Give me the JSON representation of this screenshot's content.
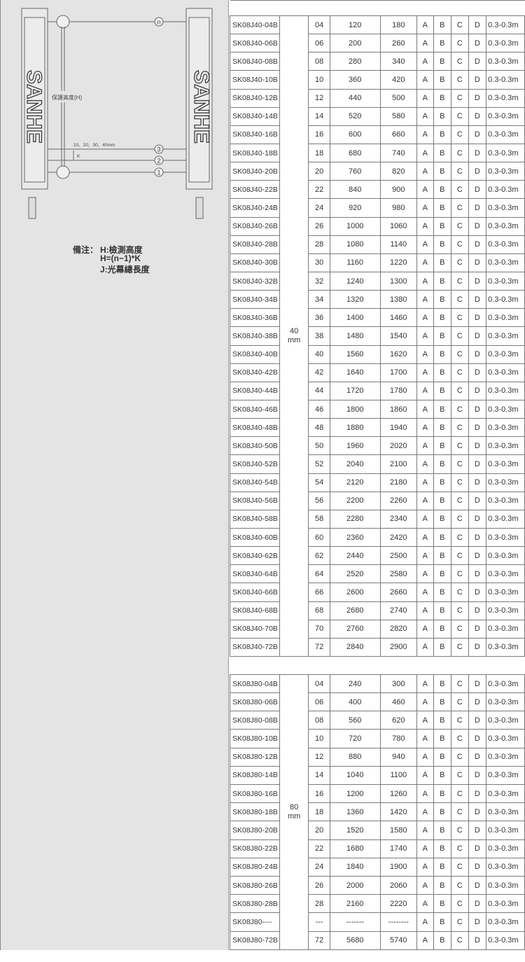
{
  "diagram": {
    "brand": "SANHE",
    "height_label": "保護高度(H)",
    "pitch_label": "10、20、30、40mm",
    "k_label": "K",
    "beam_labels": [
      "n",
      "3",
      "2",
      "1"
    ]
  },
  "notes": {
    "prefix": "備注：",
    "lines": [
      "H:檢測高度",
      "H=(n−1)*K",
      "J:光幕總長度"
    ]
  },
  "colors": {
    "panel": "#e4e4e4",
    "border": "#7a7a7a"
  },
  "sections": [
    {
      "pitch": "40\nmm",
      "rows": [
        [
          "SK08J40-04B",
          "04",
          "120",
          "180",
          "A",
          "B",
          "C",
          "D",
          "0.3-0.3m"
        ],
        [
          "SK08J40-06B",
          "06",
          "200",
          "260",
          "A",
          "B",
          "C",
          "D",
          "0.3-0.3m"
        ],
        [
          "SK08J40-08B",
          "08",
          "280",
          "340",
          "A",
          "B",
          "C",
          "D",
          "0.3-0.3m"
        ],
        [
          "SK08J40-10B",
          "10",
          "360",
          "420",
          "A",
          "B",
          "C",
          "D",
          "0.3-0.3m"
        ],
        [
          "SK08J40-12B",
          "12",
          "440",
          "500",
          "A",
          "B",
          "C",
          "D",
          "0.3-0.3m"
        ],
        [
          "SK08J40-14B",
          "14",
          "520",
          "580",
          "A",
          "B",
          "C",
          "D",
          "0.3-0.3m"
        ],
        [
          "SK08J40-16B",
          "16",
          "600",
          "660",
          "A",
          "B",
          "C",
          "D",
          "0.3-0.3m"
        ],
        [
          "SK08J40-18B",
          "18",
          "680",
          "740",
          "A",
          "B",
          "C",
          "D",
          "0.3-0.3m"
        ],
        [
          "SK08J40-20B",
          "20",
          "760",
          "820",
          "A",
          "B",
          "C",
          "D",
          "0.3-0.3m"
        ],
        [
          "SK08J40-22B",
          "22",
          "840",
          "900",
          "A",
          "B",
          "C",
          "D",
          "0.3-0.3m"
        ],
        [
          "SK08J40-24B",
          "24",
          "920",
          "980",
          "A",
          "B",
          "C",
          "D",
          "0.3-0.3m"
        ],
        [
          "SK08J40-26B",
          "26",
          "1000",
          "1060",
          "A",
          "B",
          "C",
          "D",
          "0.3-0.3m"
        ],
        [
          "SK08J40-28B",
          "28",
          "1080",
          "1140",
          "A",
          "B",
          "C",
          "D",
          "0.3-0.3m"
        ],
        [
          "SK08J40-30B",
          "30",
          "1160",
          "1220",
          "A",
          "B",
          "C",
          "D",
          "0.3-0.3m"
        ],
        [
          "SK08J40-32B",
          "32",
          "1240",
          "1300",
          "A",
          "B",
          "C",
          "D",
          "0.3-0.3m"
        ],
        [
          "SK08J40-34B",
          "34",
          "1320",
          "1380",
          "A",
          "B",
          "C",
          "D",
          "0.3-0.3m"
        ],
        [
          "SK08J40-36B",
          "36",
          "1400",
          "1460",
          "A",
          "B",
          "C",
          "D",
          "0.3-0.3m"
        ],
        [
          "SK08J40-38B",
          "38",
          "1480",
          "1540",
          "A",
          "B",
          "C",
          "D",
          "0.3-0.3m"
        ],
        [
          "SK08J40-40B",
          "40",
          "1560",
          "1620",
          "A",
          "B",
          "C",
          "D",
          "0.3-0.3m"
        ],
        [
          "SK08J40-42B",
          "42",
          "1640",
          "1700",
          "A",
          "B",
          "C",
          "D",
          "0.3-0.3m"
        ],
        [
          "SK08J40-44B",
          "44",
          "1720",
          "1780",
          "A",
          "B",
          "C",
          "D",
          "0.3-0.3m"
        ],
        [
          "SK08J40-46B",
          "46",
          "1800",
          "1860",
          "A",
          "B",
          "C",
          "D",
          "0.3-0.3m"
        ],
        [
          "SK08J40-48B",
          "48",
          "1880",
          "1940",
          "A",
          "B",
          "C",
          "D",
          "0.3-0.3m"
        ],
        [
          "SK08J40-50B",
          "50",
          "1960",
          "2020",
          "A",
          "B",
          "C",
          "D",
          "0.3-0.3m"
        ],
        [
          "SK08J40-52B",
          "52",
          "2040",
          "2100",
          "A",
          "B",
          "C",
          "D",
          "0.3-0.3m"
        ],
        [
          "SK08J40-54B",
          "54",
          "2120",
          "2180",
          "A",
          "B",
          "C",
          "D",
          "0.3-0.3m"
        ],
        [
          "SK08J40-56B",
          "56",
          "2200",
          "2260",
          "A",
          "B",
          "C",
          "D",
          "0.3-0.3m"
        ],
        [
          "SK08J40-58B",
          "58",
          "2280",
          "2340",
          "A",
          "B",
          "C",
          "D",
          "0.3-0.3m"
        ],
        [
          "SK08J40-60B",
          "60",
          "2360",
          "2420",
          "A",
          "B",
          "C",
          "D",
          "0.3-0.3m"
        ],
        [
          "SK08J40-62B",
          "62",
          "2440",
          "2500",
          "A",
          "B",
          "C",
          "D",
          "0.3-0.3m"
        ],
        [
          "SK08J40-64B",
          "64",
          "2520",
          "2580",
          "A",
          "B",
          "C",
          "D",
          "0.3-0.3m"
        ],
        [
          "SK08J40-66B",
          "66",
          "2600",
          "2660",
          "A",
          "B",
          "C",
          "D",
          "0.3-0.3m"
        ],
        [
          "SK08J40-68B",
          "68",
          "2680",
          "2740",
          "A",
          "B",
          "C",
          "D",
          "0.3-0.3m"
        ],
        [
          "SK08J40-70B",
          "70",
          "2760",
          "2820",
          "A",
          "B",
          "C",
          "D",
          "0.3-0.3m"
        ],
        [
          "SK08J40-72B",
          "72",
          "2840",
          "2900",
          "A",
          "B",
          "C",
          "D",
          "0.3-0.3m"
        ]
      ]
    },
    {
      "pitch": "80\nmm",
      "rows": [
        [
          "SK08J80-04B",
          "04",
          "240",
          "300",
          "A",
          "B",
          "C",
          "D",
          "0.3-0.3m"
        ],
        [
          "SK08J80-06B",
          "06",
          "400",
          "460",
          "A",
          "B",
          "C",
          "D",
          "0.3-0.3m"
        ],
        [
          "SK08J80-08B",
          "08",
          "560",
          "620",
          "A",
          "B",
          "C",
          "D",
          "0.3-0.3m"
        ],
        [
          "SK08J80-10B",
          "10",
          "720",
          "780",
          "A",
          "B",
          "C",
          "D",
          "0.3-0.3m"
        ],
        [
          "SK08J80-12B",
          "12",
          "880",
          "940",
          "A",
          "B",
          "C",
          "D",
          "0.3-0.3m"
        ],
        [
          "SK08J80-14B",
          "14",
          "1040",
          "1100",
          "A",
          "B",
          "C",
          "D",
          "0.3-0.3m"
        ],
        [
          "SK08J80-16B",
          "16",
          "1200",
          "1260",
          "A",
          "B",
          "C",
          "D",
          "0.3-0.3m"
        ],
        [
          "SK08J80-18B",
          "18",
          "1360",
          "1420",
          "A",
          "B",
          "C",
          "D",
          "0.3-0.3m"
        ],
        [
          "SK08J80-20B",
          "20",
          "1520",
          "1580",
          "A",
          "B",
          "C",
          "D",
          "0.3-0.3m"
        ],
        [
          "SK08J80-22B",
          "22",
          "1680",
          "1740",
          "A",
          "B",
          "C",
          "D",
          "0.3-0.3m"
        ],
        [
          "SK08J80-24B",
          "24",
          "1840",
          "1900",
          "A",
          "B",
          "C",
          "D",
          "0.3-0.3m"
        ],
        [
          "SK08J80-26B",
          "26",
          "2000",
          "2060",
          "A",
          "B",
          "C",
          "D",
          "0.3-0.3m"
        ],
        [
          "SK08J80-28B",
          "28",
          "2160",
          "2220",
          "A",
          "B",
          "C",
          "D",
          "0.3-0.3m"
        ],
        [
          "SK08J80----",
          "---",
          "-------",
          "--------",
          "A",
          "B",
          "C",
          "D",
          "0.3-0.3m"
        ],
        [
          "SK08J80-72B",
          "72",
          "5680",
          "5740",
          "A",
          "B",
          "C",
          "D",
          "0.3-0.3m"
        ]
      ]
    }
  ]
}
